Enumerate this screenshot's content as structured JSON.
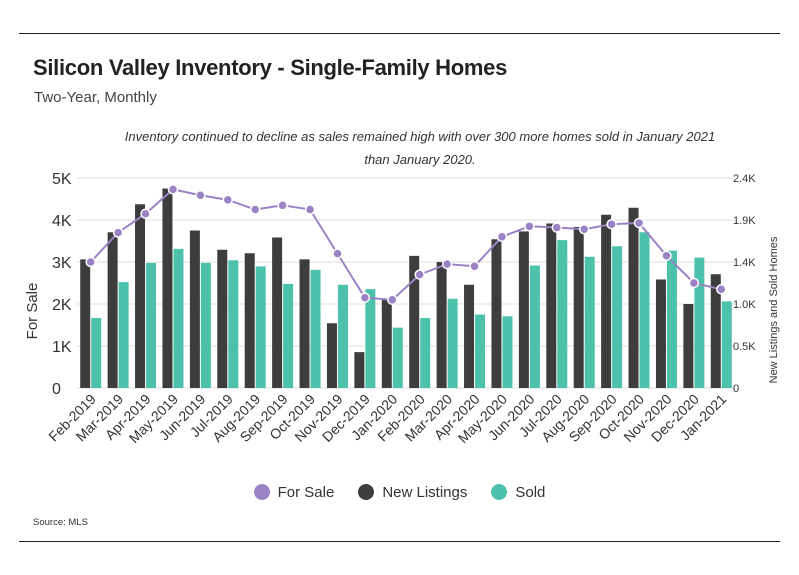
{
  "header": {
    "title": "Silicon Valley Inventory - Single-Family Homes",
    "subtitle": "Two-Year, Monthly"
  },
  "annotation": {
    "line1": "Inventory continued to decline as sales remained high with over 300 more homes sold in January 2021",
    "line2": "than January 2020."
  },
  "source": "Source:  MLS",
  "colors": {
    "for_sale": "#9b82c4",
    "new_listings": "#3d3d3d",
    "sold": "#4cc1ac",
    "grid": "#dddddd",
    "text": "#333333"
  },
  "chart_data": {
    "type": "bar",
    "categories": [
      "Feb-2019",
      "Mar-2019",
      "Apr-2019",
      "May-2019",
      "Jun-2019",
      "Jul-2019",
      "Aug-2019",
      "Sep-2019",
      "Oct-2019",
      "Nov-2019",
      "Dec-2019",
      "Jan-2020",
      "Feb-2020",
      "Mar-2020",
      "Apr-2020",
      "May-2020",
      "Jun-2020",
      "Jul-2020",
      "Aug-2020",
      "Sep-2020",
      "Oct-2020",
      "Nov-2020",
      "Dec-2020",
      "Jan-2021"
    ],
    "ylabel": "For Sale",
    "y2label": "New Listings and Sold Homes",
    "yticks": [
      "0",
      "1K",
      "2K",
      "3K",
      "4K",
      "5K"
    ],
    "y2ticks": [
      "0",
      "0.5K",
      "1.0K",
      "1.4K",
      "1.9K",
      "2.4K"
    ],
    "ylim": [
      0,
      5000
    ],
    "y2lim": [
      0,
      2400
    ],
    "grid": true,
    "legend_position": "bottom",
    "series": [
      {
        "name": "For Sale",
        "type": "line",
        "axis": "left",
        "values": [
          3000,
          3700,
          4150,
          4730,
          4590,
          4480,
          4250,
          4350,
          4250,
          3200,
          2150,
          2100,
          2700,
          2950,
          2900,
          3600,
          3850,
          3820,
          3780,
          3900,
          3930,
          3150,
          2500,
          2350
        ]
      },
      {
        "name": "New Listings",
        "type": "bar",
        "axis": "right",
        "values": [
          1470,
          1780,
          2100,
          2280,
          1800,
          1580,
          1540,
          1720,
          1470,
          740,
          410,
          1010,
          1510,
          1440,
          1180,
          1700,
          1790,
          1880,
          1840,
          1980,
          2060,
          1240,
          960,
          1300
        ]
      },
      {
        "name": "Sold",
        "type": "bar",
        "axis": "right",
        "values": [
          800,
          1210,
          1430,
          1590,
          1430,
          1460,
          1390,
          1190,
          1350,
          1180,
          1130,
          690,
          800,
          1020,
          840,
          820,
          1400,
          1690,
          1500,
          1620,
          1780,
          1570,
          1490,
          990
        ]
      }
    ]
  }
}
